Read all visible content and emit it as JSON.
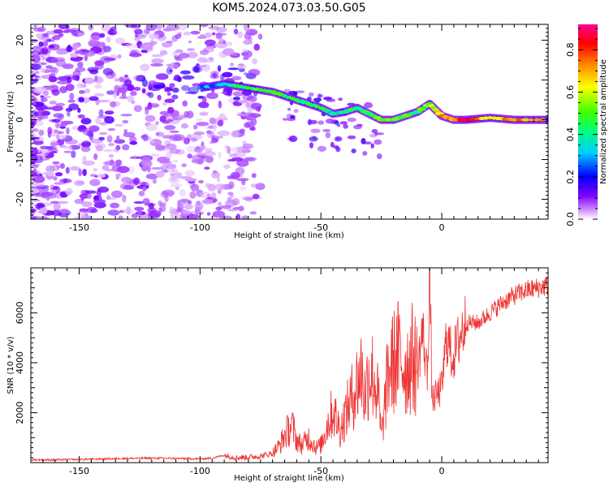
{
  "figure": {
    "title": "KOM5.2024.073.03.50.G05"
  },
  "chart_data": [
    {
      "type": "heatmap",
      "panel": "spectrogram",
      "xlabel": "Height of straight line (km)",
      "ylabel": "Frequency (Hz)",
      "xlim": [
        -170,
        44
      ],
      "ylim": [
        -25,
        24
      ],
      "xticks": [
        -150,
        -100,
        -50,
        0
      ],
      "yticks": [
        -20,
        -10,
        0,
        10,
        20
      ],
      "colorbar": {
        "label": "Normalized spectral amplitude",
        "range": [
          0,
          0.92
        ],
        "ticks": [
          0.0,
          0.2,
          0.4,
          0.6,
          0.8
        ],
        "colormap": [
          "#ffffff",
          "#8000ff",
          "#0000ff",
          "#00ffff",
          "#00ff00",
          "#ffff00",
          "#ff8000",
          "#ff0000",
          "#ff00a0"
        ]
      },
      "ridge": {
        "x": [
          -100,
          -90,
          -80,
          -70,
          -60,
          -50,
          -45,
          -40,
          -35,
          -30,
          -25,
          -20,
          -15,
          -10,
          -5,
          0,
          5,
          10,
          20,
          30,
          44
        ],
        "y": [
          8,
          9,
          8,
          7,
          5,
          3,
          1.5,
          2,
          3,
          1.5,
          0,
          0,
          1,
          2,
          4,
          1,
          0,
          0,
          0.5,
          0,
          0
        ],
        "amplitude": [
          0.25,
          0.3,
          0.45,
          0.5,
          0.45,
          0.45,
          0.35,
          0.4,
          0.45,
          0.45,
          0.55,
          0.5,
          0.5,
          0.45,
          0.55,
          0.7,
          0.75,
          0.8,
          0.6,
          0.75,
          0.7
        ]
      }
    },
    {
      "type": "line",
      "panel": "snr",
      "xlabel": "Height of straight line (km)",
      "ylabel": "SNR (10 * v/v)",
      "xlim": [
        -170,
        44
      ],
      "ylim": [
        0,
        7800
      ],
      "xticks": [
        -150,
        -100,
        -50,
        0
      ],
      "yticks": [
        2000,
        4000,
        6000
      ],
      "series": [
        {
          "color": "#ee3333",
          "x": [
            -170,
            -160,
            -150,
            -140,
            -130,
            -120,
            -110,
            -100,
            -95,
            -90,
            -85,
            -80,
            -75,
            -70,
            -67,
            -65,
            -62,
            -60,
            -58,
            -55,
            -52,
            -50,
            -47,
            -45,
            -42,
            -40,
            -38,
            -35,
            -33,
            -32,
            -30,
            -28,
            -26,
            -25,
            -22,
            -20,
            -18,
            -15,
            -12,
            -10,
            -8,
            -6,
            -5,
            -4,
            -2,
            0,
            1,
            2,
            4,
            5,
            8,
            10,
            15,
            20,
            25,
            30,
            35,
            40,
            44
          ],
          "y": [
            120,
            110,
            130,
            150,
            170,
            180,
            170,
            150,
            180,
            300,
            200,
            220,
            260,
            380,
            700,
            1100,
            1500,
            900,
            700,
            1000,
            600,
            700,
            1600,
            2100,
            1300,
            1900,
            2400,
            3200,
            3700,
            2600,
            3700,
            3400,
            2400,
            1000,
            3700,
            4000,
            4300,
            3800,
            4200,
            3700,
            5300,
            3500,
            7800,
            2500,
            2700,
            3000,
            4000,
            5100,
            4300,
            4300,
            5200,
            5600,
            5600,
            6000,
            6400,
            6700,
            6900,
            7000,
            7100
          ]
        }
      ]
    }
  ]
}
